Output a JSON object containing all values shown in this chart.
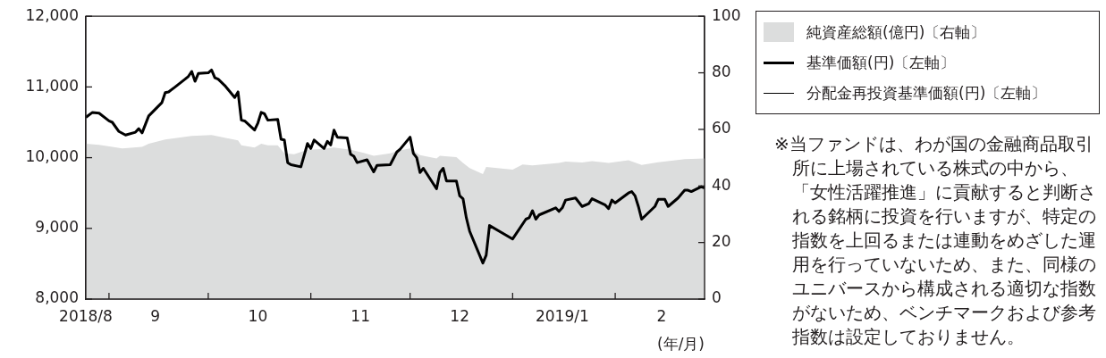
{
  "chart_data": {
    "type": "line",
    "xlabel": "(年/月)",
    "legend": "right",
    "grid": false,
    "marker": "none",
    "line_style": "solid",
    "xlim": [
      "2018-08-25",
      "2019-02-28"
    ],
    "xticks": [
      {
        "value": "2018-08-25",
        "label": "2018/8"
      },
      {
        "value": "2018-09-01",
        "label": null
      },
      {
        "value": "2018-09-15",
        "label": "9"
      },
      {
        "value": "2018-10-01",
        "label": null
      },
      {
        "value": "2018-10-16",
        "label": "10"
      },
      {
        "value": "2018-11-01",
        "label": null
      },
      {
        "value": "2018-11-16",
        "label": "11"
      },
      {
        "value": "2018-12-01",
        "label": null
      },
      {
        "value": "2018-12-16",
        "label": "12"
      },
      {
        "value": "2019-01-01",
        "label": null
      },
      {
        "value": "2019-01-16",
        "label": "2019/1"
      },
      {
        "value": "2019-02-01",
        "label": null
      },
      {
        "value": "2019-02-15",
        "label": "2"
      }
    ],
    "ylim": [
      8000,
      12000
    ],
    "yticks": [
      {
        "value": 8000,
        "label": "8,000"
      },
      {
        "value": 9000,
        "label": "9,000"
      },
      {
        "value": 10000,
        "label": "10,000"
      },
      {
        "value": 11000,
        "label": "11,000"
      },
      {
        "value": 12000,
        "label": "12,000"
      }
    ],
    "y2lim": [
      0,
      100
    ],
    "y2ticks": [
      0,
      20,
      40,
      60,
      80,
      100
    ],
    "series": [
      {
        "name": "純資産総額(億円)〔右軸〕",
        "type": "area",
        "axis": "y2",
        "color": "#dcdddd",
        "x": [
          "2018-08-25",
          "2018-08-29",
          "2018-09-02",
          "2018-09-05",
          "2018-09-11",
          "2018-09-13",
          "2018-09-18",
          "2018-09-26",
          "2018-10-02",
          "2018-10-04",
          "2018-10-10",
          "2018-10-11",
          "2018-10-15",
          "2018-10-17",
          "2018-10-19",
          "2018-10-22",
          "2018-10-24",
          "2018-10-27",
          "2018-10-31",
          "2018-11-04",
          "2018-11-08",
          "2018-11-13",
          "2018-11-17",
          "2018-11-20",
          "2018-11-25",
          "2018-11-27",
          "2018-12-01",
          "2018-12-04",
          "2018-12-09",
          "2018-12-10",
          "2018-12-15",
          "2018-12-17",
          "2018-12-19",
          "2018-12-23",
          "2018-12-24",
          "2019-01-01",
          "2019-01-04",
          "2019-01-07",
          "2019-01-15",
          "2019-01-17",
          "2019-01-22",
          "2019-01-25",
          "2019-01-30",
          "2019-02-05",
          "2019-02-09",
          "2019-02-14",
          "2019-02-22",
          "2019-02-28"
        ],
        "values": [
          54.9,
          54.5,
          53.8,
          53.3,
          53.8,
          54.9,
          56.4,
          57.7,
          58,
          57.5,
          56.1,
          54.4,
          53.6,
          54.9,
          54.4,
          54.4,
          51.5,
          51.2,
          52.8,
          53,
          53.6,
          52.8,
          51.7,
          50.7,
          51.5,
          52.3,
          53.3,
          50.9,
          49.7,
          50.7,
          50.2,
          48.1,
          46.3,
          44.2,
          46.7,
          45.8,
          47.6,
          47.3,
          48.1,
          48.6,
          48.3,
          48.8,
          48.1,
          49.1,
          47.4,
          48.4,
          49.5,
          49.7
        ]
      },
      {
        "name": "基準価額(円)〔左軸〕",
        "type": "line",
        "color": "#000000",
        "x": [
          "2018-08-25",
          "2018-08-27",
          "2018-08-29",
          "2018-09-01",
          "2018-09-02",
          "2018-09-04",
          "2018-09-06",
          "2018-09-09",
          "2018-09-10",
          "2018-09-11",
          "2018-09-13",
          "2018-09-17",
          "2018-09-18",
          "2018-09-19",
          "2018-09-21",
          "2018-09-24",
          "2018-09-25",
          "2018-09-26",
          "2018-09-27",
          "2018-09-28",
          "2018-10-01",
          "2018-10-02",
          "2018-10-03",
          "2018-10-04",
          "2018-10-06",
          "2018-10-09",
          "2018-10-10",
          "2018-10-11",
          "2018-10-12",
          "2018-10-15",
          "2018-10-16",
          "2018-10-17",
          "2018-10-18",
          "2018-10-19",
          "2018-10-22",
          "2018-10-23",
          "2018-10-24",
          "2018-10-25",
          "2018-10-26",
          "2018-10-29",
          "2018-10-31",
          "2018-11-01",
          "2018-11-02",
          "2018-11-05",
          "2018-11-06",
          "2018-11-07",
          "2018-11-08",
          "2018-11-09",
          "2018-11-12",
          "2018-11-13",
          "2018-11-14",
          "2018-11-15",
          "2018-11-18",
          "2018-11-20",
          "2018-11-21",
          "2018-11-25",
          "2018-11-27",
          "2018-11-28",
          "2018-12-01",
          "2018-12-02",
          "2018-12-03",
          "2018-12-04",
          "2018-12-05",
          "2018-12-09",
          "2018-12-10",
          "2018-12-11",
          "2018-12-12",
          "2018-12-15",
          "2018-12-16",
          "2018-12-17",
          "2018-12-18",
          "2018-12-19",
          "2018-12-23",
          "2018-12-24",
          "2018-12-25",
          "2019-01-01",
          "2019-01-05",
          "2019-01-06",
          "2019-01-07",
          "2019-01-08",
          "2019-01-09",
          "2019-01-14",
          "2019-01-15",
          "2019-01-16",
          "2019-01-17",
          "2019-01-20",
          "2019-01-22",
          "2019-01-24",
          "2019-01-25",
          "2019-01-29",
          "2019-01-30",
          "2019-01-31",
          "2019-02-01",
          "2019-02-05",
          "2019-02-06",
          "2019-02-07",
          "2019-02-08",
          "2019-02-09",
          "2019-02-13",
          "2019-02-14",
          "2019-02-16",
          "2019-02-17",
          "2019-02-20",
          "2019-02-22",
          "2019-02-23",
          "2019-02-24",
          "2019-02-27",
          "2019-02-28"
        ],
        "values": [
          10570,
          10640,
          10630,
          10520,
          10500,
          10370,
          10320,
          10360,
          10410,
          10350,
          10590,
          10780,
          10920,
          10930,
          11000,
          11110,
          11150,
          11220,
          11080,
          11190,
          11200,
          11240,
          11130,
          11110,
          11020,
          10850,
          10930,
          10530,
          10520,
          10390,
          10490,
          10640,
          10620,
          10530,
          10540,
          10260,
          10250,
          9930,
          9900,
          9870,
          10200,
          10130,
          10250,
          10130,
          10230,
          10180,
          10390,
          10290,
          10280,
          10050,
          10020,
          9930,
          9970,
          9800,
          9890,
          9900,
          10080,
          10120,
          10290,
          10060,
          10000,
          9790,
          9850,
          9560,
          9790,
          9850,
          9670,
          9670,
          9460,
          9420,
          9150,
          8960,
          8510,
          8620,
          9040,
          8850,
          9130,
          9150,
          9250,
          9130,
          9190,
          9290,
          9240,
          9290,
          9400,
          9430,
          9310,
          9350,
          9420,
          9330,
          9280,
          9400,
          9360,
          9500,
          9520,
          9460,
          9310,
          9130,
          9310,
          9410,
          9410,
          9310,
          9430,
          9540,
          9540,
          9520,
          9590,
          9570
        ]
      },
      {
        "name": "分配金再投資基準価額(円)〔左軸〕",
        "type": "line",
        "color": "#000000"
      }
    ],
    "annotations": [
      "※当ファンドは、わが国の金融商品取引所に上場されている株式の中から、「女性活躍推進」に貢献すると判断される銘柄に投資を行いますが、特定の指数を上回るまたは連動をめざした運用を行っていないため、また、同様のユニバースから構成される適切な指数がないため、ベンチマークおよび参考指数は設定しておりません。"
    ]
  }
}
